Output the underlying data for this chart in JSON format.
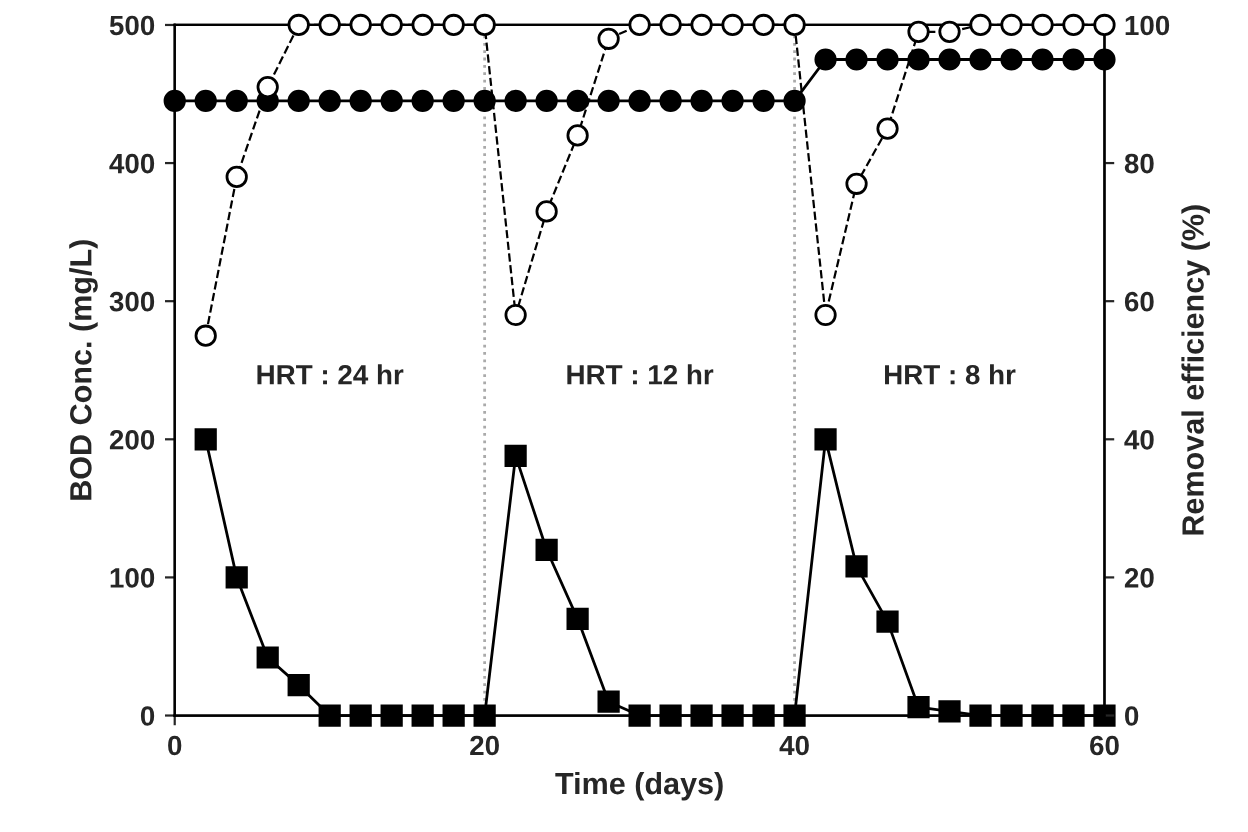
{
  "chart_data": {
    "type": "line",
    "xlabel": "Time (days)",
    "ylabel": "BOD Conc. (mg/L)",
    "y2label": "Removal efficiency (%)",
    "xlim": [
      0,
      60
    ],
    "xticks": [
      0,
      20,
      40,
      60
    ],
    "ylim": [
      0,
      500
    ],
    "yticks": [
      0,
      100,
      200,
      300,
      400,
      500
    ],
    "y2lim": [
      0,
      100
    ],
    "y2ticks": [
      0,
      20,
      40,
      60,
      80,
      100
    ],
    "grid": false,
    "legend": false,
    "series": [
      {
        "color": "#000000",
        "marker": "circle",
        "line_style": "solid",
        "x": [
          0,
          2,
          4,
          6,
          8,
          10,
          12,
          14,
          16,
          18,
          20,
          22,
          24,
          26,
          28,
          30,
          32,
          34,
          36,
          38,
          40,
          42,
          44,
          46,
          48,
          50,
          52,
          54,
          56,
          58,
          60
        ],
        "values": [
          445,
          445,
          445,
          445,
          445,
          445,
          445,
          445,
          445,
          445,
          445,
          445,
          445,
          445,
          445,
          445,
          445,
          445,
          445,
          445,
          445,
          475,
          475,
          475,
          475,
          475,
          475,
          475,
          475,
          475,
          475
        ]
      },
      {
        "color": "#000000",
        "marker": "square",
        "line_style": "solid",
        "x": [
          2,
          4,
          6,
          8,
          10,
          12,
          14,
          16,
          18,
          20,
          22,
          24,
          26,
          28,
          30,
          32,
          34,
          36,
          38,
          40,
          42,
          44,
          46,
          48,
          50,
          52,
          54,
          56,
          58,
          60
        ],
        "values": [
          200,
          100,
          42,
          22,
          0,
          0,
          0,
          0,
          0,
          0,
          188,
          120,
          70,
          10,
          0,
          0,
          0,
          0,
          0,
          0,
          200,
          108,
          68,
          6,
          3,
          0,
          0,
          0,
          0,
          0
        ]
      },
      {
        "color": "#000000",
        "marker": "circle",
        "line_style": "dashed",
        "axis": "y2",
        "x": [
          2,
          4,
          6,
          8,
          10,
          12,
          14,
          16,
          18,
          20,
          22,
          24,
          26,
          28,
          30,
          32,
          34,
          36,
          38,
          40,
          42,
          44,
          46,
          48,
          50,
          52,
          54,
          56,
          58,
          60
        ],
        "values": [
          55,
          78,
          91,
          100,
          100,
          100,
          100,
          100,
          100,
          100,
          58,
          73,
          84,
          98,
          100,
          100,
          100,
          100,
          100,
          100,
          58,
          77,
          85,
          99,
          99,
          100,
          100,
          100,
          100,
          100
        ]
      }
    ],
    "ref_lines": [
      {
        "axis": "x",
        "value": 20,
        "color": "#aaaaaa",
        "line_style": "dotted"
      },
      {
        "axis": "x",
        "value": 40,
        "color": "#aaaaaa",
        "line_style": "dotted"
      }
    ],
    "annotations": [
      "HRT : 24 hr",
      "HRT : 12 hr",
      "HRT : 8 hr"
    ]
  }
}
